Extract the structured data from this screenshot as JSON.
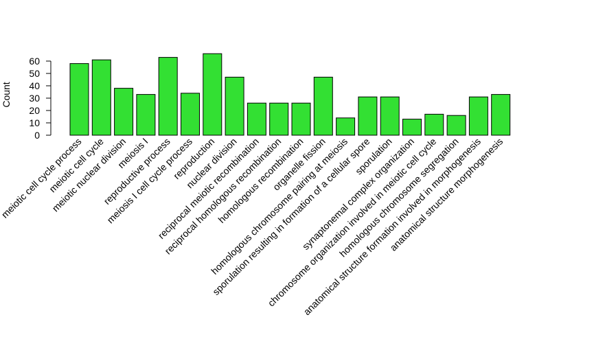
{
  "chart_data": {
    "type": "bar",
    "title": "",
    "xlabel": "",
    "ylabel": "Count",
    "ylim": [
      0,
      66
    ],
    "yticks": [
      0,
      10,
      20,
      30,
      40,
      50,
      60
    ],
    "bar_color": "#33e033",
    "bar_stroke": "#000000",
    "categories": [
      "meiotic cell cycle process",
      "meiotic cell cycle",
      "meiotic nuclear division",
      "meiosis I",
      "reproductive process",
      "meiosis I cell cycle process",
      "reproduction",
      "nuclear division",
      "reciprocal meiotic recombination",
      "reciprocal homologous recombination",
      "homologous recombination",
      "organelle fission",
      "homologous chromosome pairing at meiosis",
      "sporulation resulting in formation of a cellular spore",
      "sporulation",
      "synaptonemal complex organization",
      "chromosome organization involved in meiotic cell cycle",
      "homologous chromosome segregation",
      "anatomical structure formation involved in morphogenesis",
      "anatomical structure morphogenesis"
    ],
    "values": [
      58,
      61,
      38,
      33,
      63,
      34,
      66,
      47,
      26,
      26,
      26,
      47,
      14,
      31,
      31,
      13,
      17,
      16,
      31,
      33
    ]
  }
}
